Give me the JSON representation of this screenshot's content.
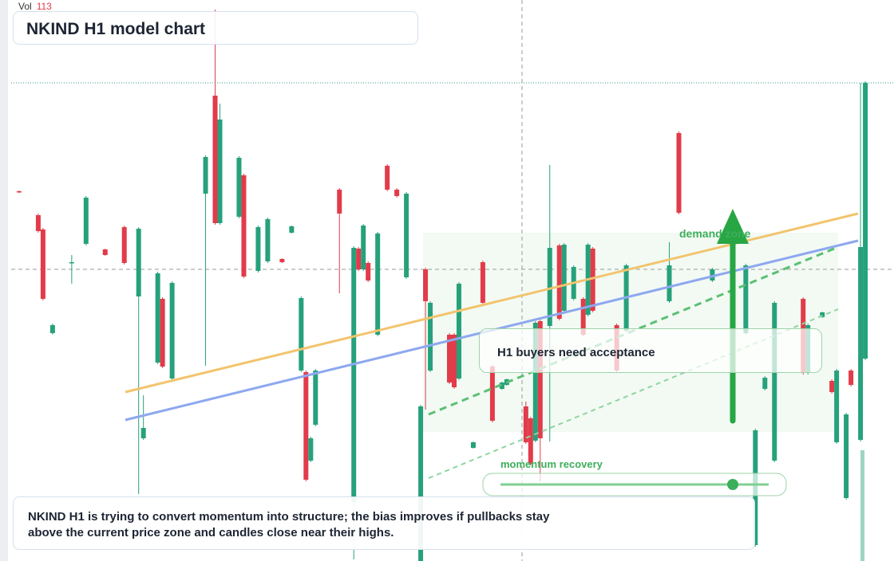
{
  "chart_data": {
    "type": "candlestick",
    "title": "NKIND H1 model chart",
    "volume_label": "Vol",
    "volume": 113,
    "x": [
      4,
      8,
      9,
      11,
      15,
      18,
      22,
      26,
      29,
      30,
      33,
      34,
      36,
      43,
      45,
      46,
      50,
      51,
      54,
      56,
      59,
      61,
      63,
      64,
      65,
      66,
      71,
      74,
      75,
      76,
      77,
      79,
      81,
      83,
      85,
      88,
      89,
      90,
      94,
      95,
      96,
      99,
      101,
      103,
      105,
      106,
      110,
      111,
      112,
      113,
      115,
      117,
      118,
      120,
      122,
      123,
      124,
      129,
      131,
      140,
      142,
      149,
      156,
      158,
      160,
      162,
      168,
      169,
      172,
      174,
      175,
      177,
      178,
      180,
      181
    ],
    "open": [
      46.4,
      43.4,
      41.6,
      28.6,
      37.4,
      39.8,
      39.1,
      41.9,
      33.2,
      15.4,
      24.9,
      32.9,
      22.9,
      46.1,
      58.4,
      42.4,
      43.2,
      48.4,
      36.4,
      37.6,
      37.9,
      41.2,
      23.9,
      23.7,
      12.6,
      17.1,
      46.6,
      7.4,
      39.2,
      36.6,
      37.4,
      28.4,
      49.6,
      46.6,
      35.6,
      0.0,
      36.6,
      23.9,
      28.4,
      28.4,
      22.9,
      14.2,
      37.5,
      24.4,
      21.6,
      22.1,
      19.4,
      17.9,
      15.1,
      30.1,
      29.5,
      39.6,
      31.4,
      32.9,
      32.9,
      30.9,
      39.2,
      29.6,
      28.9,
      32.6,
      53.7,
      35.2,
      28.6,
      2.0,
      21.6,
      12.6,
      32.9,
      23.6,
      30.6,
      22.6,
      14.9,
      7.9,
      23.9,
      15.2,
      25.4
    ],
    "high": [
      46.5,
      43.6,
      41.8,
      29.8,
      38.4,
      45.8,
      39.2,
      42.1,
      41.9,
      20.8,
      36.3,
      33.1,
      35.1,
      50.9,
      69.2,
      57.4,
      50.8,
      48.6,
      42.1,
      43.1,
      38.0,
      42.1,
      33.2,
      23.9,
      15.6,
      24.1,
      46.8,
      39.5,
      39.4,
      42.3,
      37.6,
      41.3,
      49.8,
      46.8,
      46.3,
      19.6,
      36.8,
      32.6,
      28.6,
      28.6,
      35.0,
      15.0,
      37.7,
      24.6,
      22.5,
      22.9,
      20.0,
      18.1,
      30.1,
      30.3,
      49.7,
      39.8,
      39.9,
      37.1,
      33.1,
      39.9,
      39.4,
      29.8,
      37.3,
      40.0,
      53.9,
      36.8,
      37.3,
      16.6,
      23.2,
      32.6,
      33.1,
      29.8,
      31.3,
      22.8,
      24.1,
      18.6,
      24.1,
      60.0,
      60.2
    ],
    "low": [
      46.2,
      41.2,
      32.7,
      28.4,
      34.8,
      39.6,
      38.3,
      37.2,
      8.4,
      15.2,
      24.7,
      24.2,
      22.7,
      24.5,
      42.2,
      42.2,
      43.0,
      35.5,
      36.2,
      37.4,
      37.4,
      41.1,
      23.7,
      10.0,
      12.4,
      16.9,
      33.6,
      0.2,
      36.4,
      36.4,
      35.0,
      28.2,
      46.4,
      45.6,
      35.4,
      0.0,
      19.0,
      23.7,
      22.2,
      21.6,
      22.7,
      14.1,
      32.2,
      17.4,
      21.5,
      22.0,
      14.7,
      12.0,
      14.9,
      10.0,
      15.0,
      30.2,
      31.2,
      32.7,
      28.2,
      30.7,
      31.2,
      23.7,
      28.7,
      32.4,
      43.5,
      35.0,
      28.4,
      1.8,
      21.4,
      12.4,
      23.4,
      23.4,
      30.5,
      21.0,
      14.7,
      7.7,
      21.9,
      15.0,
      25.2
    ],
    "close": [
      46.3,
      41.4,
      32.9,
      29.6,
      37.5,
      45.6,
      38.4,
      37.4,
      41.7,
      16.7,
      36.1,
      24.4,
      34.9,
      50.7,
      42.4,
      55.4,
      50.6,
      35.7,
      41.9,
      42.9,
      37.5,
      42.0,
      33.0,
      10.2,
      15.4,
      23.9,
      43.6,
      39.3,
      36.6,
      42.1,
      35.2,
      41.1,
      46.6,
      45.8,
      46.1,
      19.4,
      32.6,
      32.4,
      22.4,
      21.8,
      34.8,
      14.9,
      32.4,
      17.6,
      22.4,
      22.8,
      14.9,
      12.2,
      29.9,
      15.4,
      39.3,
      30.4,
      39.7,
      36.9,
      28.4,
      39.7,
      31.4,
      23.9,
      37.1,
      37.1,
      43.7,
      36.6,
      37.1,
      16.4,
      23.0,
      32.4,
      23.6,
      29.6,
      31.2,
      21.2,
      23.9,
      18.4,
      22.1,
      39.4,
      60.0
    ],
    "xlim": [
      0,
      187
    ],
    "ylim": [
      0,
      70.4
    ],
    "up_color": "#26a17b",
    "down_color": "#e23b4a",
    "annotations": {
      "demand": "demand zone",
      "callout": "H1 buyers need acceptance",
      "momentum": "momentum recovery",
      "caption": "NKIND H1 is trying to convert momentum into structure; the bias improves if pullbacks stay above the current price zone and candles close near their highs."
    }
  }
}
